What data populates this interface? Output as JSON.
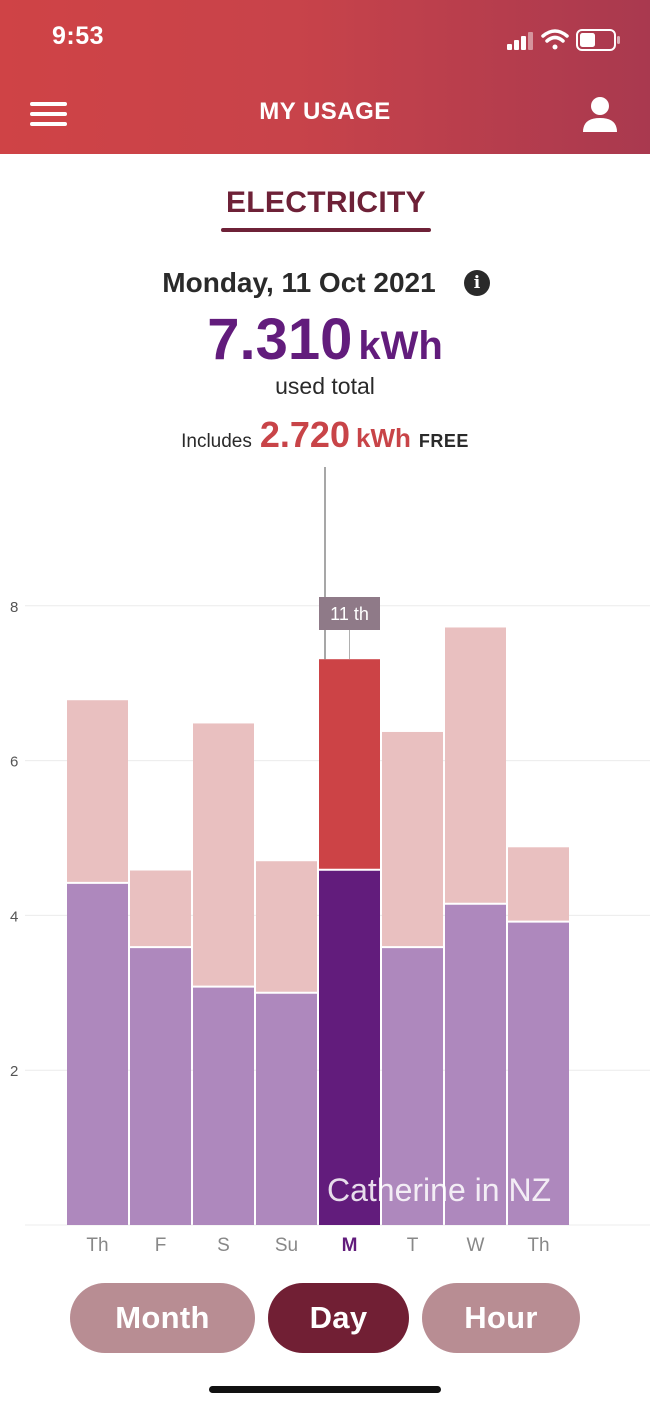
{
  "status_bar": {
    "time": "9:53"
  },
  "header": {
    "title": "MY USAGE",
    "menu_icon": "hamburger-menu-icon",
    "profile_icon": "user-profile-icon"
  },
  "section_tab": "ELECTRICITY",
  "summary": {
    "date": "Monday, 11 Oct 2021",
    "total_value": "7.310",
    "total_unit": "kWh",
    "total_label": "used total",
    "includes_label": "Includes",
    "free_value": "2.720",
    "free_unit": "kWh",
    "free_label": "FREE"
  },
  "colors": {
    "header_red": "#cf4346",
    "paid_purple": "#621c7c",
    "paid_purple_light": "#ae88bd",
    "free_red": "#cc4346",
    "free_red_light": "#e9c0c0",
    "button_active": "#711f34",
    "button_inactive": "#b88d93"
  },
  "chart_data": {
    "type": "bar",
    "stacked": true,
    "categories": [
      "Th",
      "F",
      "S",
      "Su",
      "M",
      "T",
      "W",
      "Th"
    ],
    "selected_index": 4,
    "selected_label": "11 th",
    "series": [
      {
        "values": [
          4.42,
          3.59,
          3.08,
          3.0,
          4.59,
          3.59,
          4.15,
          3.92
        ]
      },
      {
        "values": [
          2.36,
          0.99,
          3.4,
          1.7,
          2.72,
          2.78,
          3.57,
          0.96
        ]
      }
    ],
    "y_ticks": [
      2,
      4,
      6,
      8
    ],
    "ylim": [
      0,
      9.8
    ],
    "grid": true
  },
  "watermark": "Catherine in NZ",
  "buttons": {
    "month": "Month",
    "day": "Day",
    "hour": "Hour"
  }
}
